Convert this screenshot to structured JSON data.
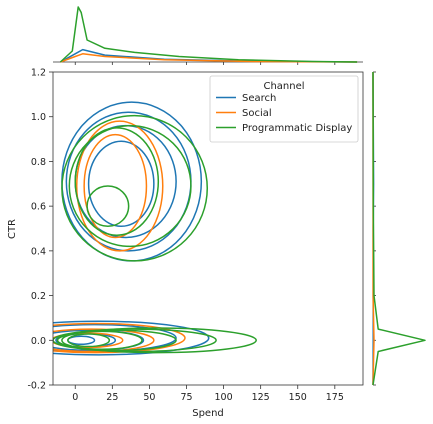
{
  "chart_data": {
    "type": "kde-joint",
    "xlabel": "Spend",
    "ylabel": "CTR",
    "xlim": [
      -15,
      194
    ],
    "ylim": [
      -0.2,
      1.2
    ],
    "x_ticks": [
      0,
      25,
      50,
      75,
      100,
      125,
      150,
      175
    ],
    "y_ticks": [
      -0.2,
      0.0,
      0.2,
      0.4,
      0.6,
      0.8,
      1.0,
      1.2
    ],
    "legend": {
      "title": "Channel",
      "placement": "top-right",
      "entries": [
        "Search",
        "Social",
        "Programmatic Display"
      ]
    },
    "series": [
      {
        "name": "Search",
        "color": "#1f77b4",
        "contours": [
          {
            "cx": 38,
            "cy": 0.71,
            "rx": 47,
            "ry": 0.355
          },
          {
            "cx": 36,
            "cy": 0.71,
            "rx": 42,
            "ry": 0.31
          },
          {
            "cx": 34,
            "cy": 0.71,
            "rx": 34,
            "ry": 0.25
          },
          {
            "cx": 31,
            "cy": 0.7,
            "rx": 22,
            "ry": 0.19
          },
          {
            "cx": 16,
            "cy": 0.01,
            "rx": 74,
            "ry": 0.075
          },
          {
            "cx": 13,
            "cy": 0.01,
            "rx": 55,
            "ry": 0.06
          },
          {
            "cx": 10,
            "cy": 0.0,
            "rx": 36,
            "ry": 0.045
          },
          {
            "cx": 7,
            "cy": 0.0,
            "rx": 20,
            "ry": 0.03
          },
          {
            "cx": 4,
            "cy": 0.0,
            "rx": 9,
            "ry": 0.018
          }
        ],
        "marginal_x": [
          [
            -10,
            0
          ],
          [
            0,
            0.03
          ],
          [
            5,
            0.045
          ],
          [
            20,
            0.025
          ],
          [
            60,
            0.01
          ],
          [
            120,
            0.003
          ],
          [
            190,
            0
          ]
        ],
        "marginal_y": [
          [
            -0.2,
            0
          ],
          [
            0.0,
            0.002
          ],
          [
            0.5,
            0.002
          ],
          [
            0.7,
            0.006
          ],
          [
            1.1,
            0.001
          ],
          [
            1.2,
            0
          ]
        ]
      },
      {
        "name": "Social",
        "color": "#ff7f0e",
        "contours": [
          {
            "cx": 30,
            "cy": 0.69,
            "rx": 29,
            "ry": 0.29
          },
          {
            "cx": 27,
            "cy": 0.69,
            "rx": 21,
            "ry": 0.23
          },
          {
            "cx": 14,
            "cy": 0.01,
            "rx": 60,
            "ry": 0.065
          },
          {
            "cx": 11,
            "cy": 0.0,
            "rx": 42,
            "ry": 0.05
          },
          {
            "cx": 8,
            "cy": 0.0,
            "rx": 24,
            "ry": 0.032
          }
        ],
        "marginal_x": [
          [
            -10,
            0
          ],
          [
            0,
            0.02
          ],
          [
            5,
            0.03
          ],
          [
            20,
            0.02
          ],
          [
            60,
            0.008
          ],
          [
            120,
            0.002
          ],
          [
            190,
            0
          ]
        ],
        "marginal_y": [
          [
            -0.2,
            0
          ],
          [
            0.0,
            0.01
          ],
          [
            0.2,
            0.001
          ],
          [
            1.2,
            0
          ]
        ]
      },
      {
        "name": "Programmatic Display",
        "color": "#2ca02c",
        "contours": [
          {
            "cx": 40,
            "cy": 0.68,
            "rx": 49,
            "ry": 0.325
          },
          {
            "cx": 37,
            "cy": 0.69,
            "rx": 41,
            "ry": 0.27
          },
          {
            "cx": 28,
            "cy": 0.71,
            "rx": 28,
            "ry": 0.24
          },
          {
            "cx": 22,
            "cy": 0.6,
            "rx": 14,
            "ry": 0.09
          },
          {
            "cx": 55,
            "cy": 0.0,
            "rx": 67,
            "ry": 0.055
          },
          {
            "cx": 40,
            "cy": 0.0,
            "rx": 55,
            "ry": 0.05
          },
          {
            "cx": 28,
            "cy": 0.0,
            "rx": 40,
            "ry": 0.045
          },
          {
            "cx": 18,
            "cy": 0.0,
            "rx": 27,
            "ry": 0.04
          },
          {
            "cx": 9,
            "cy": 0.0,
            "rx": 14,
            "ry": 0.028
          }
        ],
        "marginal_x": [
          [
            -10,
            0
          ],
          [
            -2,
            0.04
          ],
          [
            2,
            0.2
          ],
          [
            4,
            0.18
          ],
          [
            8,
            0.08
          ],
          [
            20,
            0.05
          ],
          [
            40,
            0.035
          ],
          [
            70,
            0.02
          ],
          [
            110,
            0.008
          ],
          [
            160,
            0.002
          ],
          [
            190,
            0
          ]
        ],
        "marginal_y": [
          [
            -0.2,
            0
          ],
          [
            -0.05,
            0.05
          ],
          [
            0.0,
            0.5
          ],
          [
            0.05,
            0.05
          ],
          [
            0.2,
            0.01
          ],
          [
            0.6,
            0.003
          ],
          [
            1.2,
            0
          ]
        ]
      }
    ]
  }
}
